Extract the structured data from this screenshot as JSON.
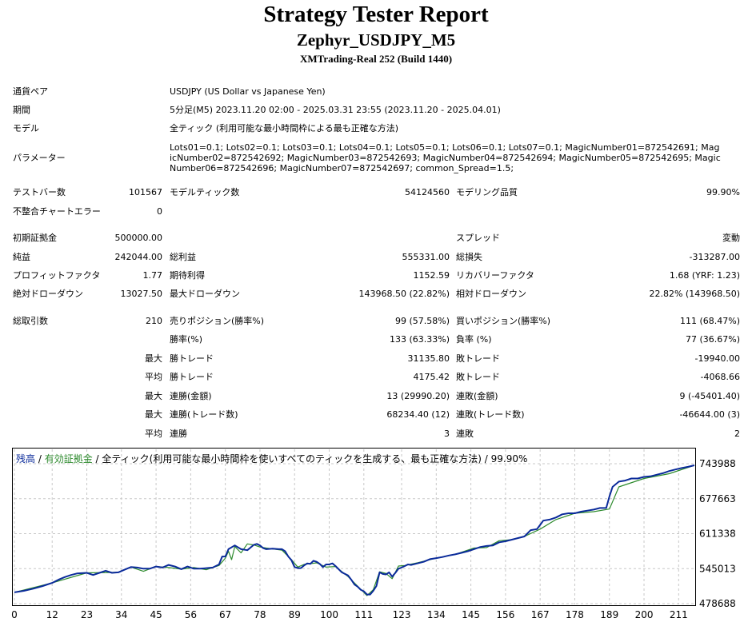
{
  "report": {
    "title": "Strategy Tester Report",
    "subtitle": "Zephyr_USDJPY_M5",
    "build": "XMTrading-Real 252 (Build 1440)"
  },
  "info": {
    "symbol_label": "通貨ペア",
    "symbol_value": "USDJPY (US Dollar vs Japanese Yen)",
    "period_label": "期間",
    "period_value": "5分足(M5) 2023.11.20 02:00 - 2025.03.31 23:55 (2023.11.20 - 2025.04.01)",
    "model_label": "モデル",
    "model_value": "全ティック (利用可能な最小時間枠による最も正確な方法)",
    "params_label": "パラメーター",
    "params_value": "Lots01=0.1; Lots02=0.1; Lots03=0.1; Lots04=0.1; Lots05=0.1; Lots06=0.1; Lots07=0.1; MagicNumber01=872542691; MagicNumber02=872542692; MagicNumber03=872542693; MagicNumber04=872542694; MagicNumber05=872542695; MagicNumber06=872542696; MagicNumber07=872542697; common_Spread=1.5;"
  },
  "stats": {
    "bars_label": "テストバー数",
    "bars_value": "101567",
    "ticks_label": "モデルティック数",
    "ticks_value": "54124560",
    "quality_label": "モデリング品質",
    "quality_value": "99.90%",
    "mismatch_label": "不整合チャートエラー",
    "mismatch_value": "0",
    "deposit_label": "初期証拠金",
    "deposit_value": "500000.00",
    "spread_label": "スプレッド",
    "spread_value": "変動",
    "net_label": "純益",
    "net_value": "242044.00",
    "gross_profit_label": "総利益",
    "gross_profit_value": "555331.00",
    "gross_loss_label": "総損失",
    "gross_loss_value": "-313287.00",
    "pf_label": "プロフィットファクタ",
    "pf_value": "1.77",
    "expected_label": "期待利得",
    "expected_value": "1152.59",
    "recovery_label": "リカバリーファクタ",
    "recovery_value": "1.68 (YRF: 1.23)",
    "abs_dd_label": "絶対ドローダウン",
    "abs_dd_value": "13027.50",
    "max_dd_label": "最大ドローダウン",
    "max_dd_value": "143968.50 (22.82%)",
    "rel_dd_label": "相対ドローダウン",
    "rel_dd_value": "22.82% (143968.50)",
    "total_label": "総取引数",
    "total_value": "210",
    "short_label": "売りポジション(勝率%)",
    "short_value": "99 (57.58%)",
    "long_label": "買いポジション(勝率%)",
    "long_value": "111 (68.47%)",
    "win_label": "勝率(%)",
    "win_value": "133 (63.33%)",
    "loss_label": "負率 (%)",
    "loss_value": "77 (36.67%)",
    "largest_prefix": "最大",
    "average_prefix": "平均",
    "lg_win_label": "勝トレード",
    "lg_win_value": "31135.80",
    "lg_loss_label": "敗トレード",
    "lg_loss_value": "-19940.00",
    "av_win_label": "勝トレード",
    "av_win_value": "4175.42",
    "av_loss_label": "敗トレード",
    "av_loss_value": "-4068.66",
    "max_cw_label": "連勝(金額)",
    "max_cw_value": "13 (29990.20)",
    "max_cl_label": "連敗(金額)",
    "max_cl_value": "9 (-45401.40)",
    "max_cp_label": "連勝(トレード数)",
    "max_cp_value": "68234.40 (12)",
    "max_cls_label": "連敗(トレード数)",
    "max_cls_value": "-46644.00 (3)",
    "avg_cw_label": "連勝",
    "avg_cw_value": "3",
    "avg_cl_label": "連敗",
    "avg_cl_value": "2"
  },
  "legend": {
    "balance": "残高",
    "sep1": " / ",
    "equity": "有効証拠金",
    "rest": " / 全ティック(利用可能な最小時間枠を使いすべてのティックを生成する、最も正確な方法) / 99.90%"
  },
  "chart_data": {
    "type": "line",
    "x_ticks": [
      "0",
      "12",
      "23",
      "34",
      "45",
      "56",
      "67",
      "78",
      "89",
      "100",
      "111",
      "123",
      "134",
      "145",
      "156",
      "167",
      "178",
      "189",
      "200",
      "211"
    ],
    "y_ticks": [
      "743988",
      "677663",
      "611338",
      "545013",
      "478688"
    ],
    "xlim": [
      0,
      216
    ],
    "ylim": [
      478688,
      743988
    ],
    "colors": {
      "balance": "#0a2a9a",
      "equity": "#2e8b2e"
    },
    "series": [
      {
        "name": "残高",
        "x": [
          0,
          3,
          6,
          9,
          12,
          14,
          16,
          18,
          20,
          23,
          25,
          27,
          29,
          31,
          33,
          35,
          37,
          39,
          41,
          43,
          45,
          47,
          49,
          51,
          53,
          55,
          57,
          59,
          61,
          63,
          65,
          66,
          67,
          68,
          70,
          72,
          74,
          76,
          77,
          78,
          79,
          80,
          82,
          84,
          85,
          86,
          87,
          88,
          89,
          90,
          91,
          92,
          93,
          94,
          95,
          96,
          97,
          98,
          99,
          100,
          101,
          102,
          104,
          106,
          107,
          108,
          109,
          110,
          111,
          112,
          113,
          114,
          115,
          116,
          117,
          118,
          119,
          120,
          121,
          122,
          123,
          124,
          125,
          126,
          128,
          130,
          132,
          134,
          136,
          138,
          140,
          142,
          144,
          146,
          148,
          150,
          152,
          154,
          156,
          158,
          160,
          162,
          164,
          166,
          167,
          168,
          170,
          172,
          174,
          176,
          178,
          180,
          182,
          184,
          186,
          188,
          189,
          190,
          192,
          194,
          196,
          198,
          200,
          202,
          204,
          206,
          208,
          210,
          212,
          214,
          216
        ],
        "y": [
          500000,
          503000,
          507000,
          512000,
          518000,
          524000,
          529000,
          533000,
          536000,
          537000,
          533000,
          537000,
          541000,
          537000,
          538000,
          543000,
          548000,
          547000,
          545000,
          545000,
          549000,
          547000,
          552000,
          549000,
          544000,
          549000,
          545000,
          545000,
          546000,
          547000,
          553000,
          568000,
          568000,
          582000,
          589000,
          582000,
          580000,
          590000,
          592000,
          589000,
          584000,
          582000,
          583000,
          582000,
          582000,
          578000,
          568000,
          561000,
          548000,
          546000,
          546000,
          551000,
          555000,
          554000,
          560000,
          558000,
          554000,
          548000,
          553000,
          553000,
          555000,
          550000,
          538000,
          532000,
          524000,
          515000,
          511000,
          505000,
          502000,
          496000,
          496000,
          503000,
          512000,
          538000,
          535000,
          534000,
          538000,
          530000,
          537000,
          545000,
          547000,
          550000,
          553000,
          552000,
          555000,
          558000,
          563000,
          565000,
          567000,
          570000,
          572000,
          575000,
          578000,
          582000,
          586000,
          588000,
          589000,
          595000,
          597000,
          600000,
          603000,
          606000,
          618000,
          620000,
          628000,
          636000,
          638000,
          642000,
          648000,
          650000,
          650000,
          653000,
          655000,
          657000,
          660000,
          660000,
          682000,
          700000,
          710000,
          712000,
          716000,
          716000,
          719000,
          720000,
          723000,
          726000,
          730000,
          733000,
          736000,
          738000,
          741000
        ]
      },
      {
        "name": "有効証拠金",
        "x": [
          0,
          12,
          23,
          33,
          37,
          41,
          45,
          49,
          53,
          57,
          61,
          65,
          67,
          68,
          69,
          70,
          72,
          74,
          76,
          78,
          80,
          85,
          88,
          90,
          92,
          96,
          99,
          102,
          106,
          110,
          112,
          114,
          116,
          118,
          120,
          122,
          124,
          128,
          134,
          140,
          146,
          150,
          154,
          158,
          162,
          167,
          172,
          178,
          184,
          189,
          192,
          200,
          208,
          216
        ],
        "y": [
          500000,
          518000,
          537000,
          538000,
          548000,
          540000,
          549000,
          547000,
          544000,
          547000,
          543000,
          551000,
          565000,
          578000,
          562000,
          587000,
          575000,
          592000,
          590000,
          586000,
          584000,
          580000,
          562000,
          548000,
          553000,
          556000,
          548000,
          549000,
          530000,
          506000,
          494000,
          505000,
          539000,
          536000,
          526000,
          550000,
          551000,
          556000,
          565000,
          572000,
          584000,
          585000,
          598000,
          600000,
          606000,
          620000,
          638000,
          650000,
          653000,
          658000,
          700000,
          716000,
          725000,
          741000
        ]
      }
    ]
  }
}
